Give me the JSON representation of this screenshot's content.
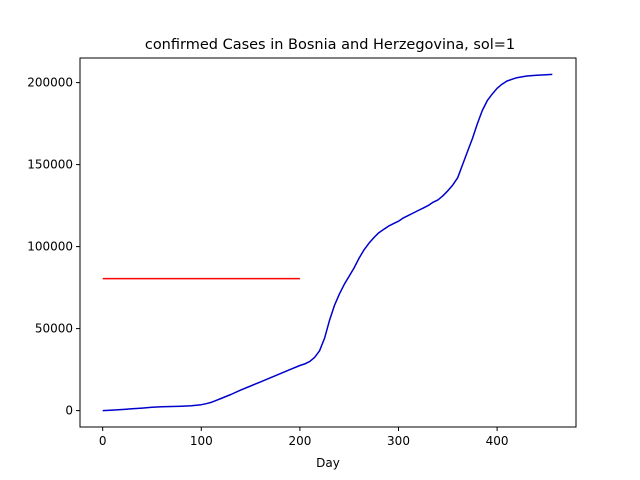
{
  "chart_data": {
    "type": "line",
    "title": "confirmed Cases in Bosnia and Herzegovina, sol=1",
    "xlabel": "Day",
    "ylabel": "",
    "xlim": [
      -23,
      480
    ],
    "ylim": [
      -10000,
      215000
    ],
    "xticks": [
      0,
      100,
      200,
      300,
      400
    ],
    "yticks": [
      0,
      50000,
      100000,
      150000,
      200000
    ],
    "grid": false,
    "series": [
      {
        "color": "#ff0000",
        "x": [
          0,
          200
        ],
        "y": [
          80500,
          80500
        ]
      },
      {
        "color": "#0000cc",
        "x": [
          0,
          10,
          20,
          30,
          40,
          50,
          60,
          70,
          80,
          90,
          100,
          105,
          110,
          115,
          120,
          130,
          140,
          150,
          160,
          170,
          180,
          190,
          200,
          205,
          210,
          215,
          220,
          225,
          230,
          235,
          240,
          245,
          250,
          255,
          260,
          265,
          270,
          275,
          280,
          285,
          290,
          295,
          300,
          305,
          310,
          315,
          320,
          325,
          330,
          335,
          340,
          345,
          350,
          355,
          360,
          365,
          370,
          375,
          380,
          385,
          390,
          395,
          400,
          405,
          410,
          415,
          420,
          430,
          440,
          450,
          456
        ],
        "y": [
          0,
          300,
          700,
          1100,
          1500,
          2000,
          2300,
          2500,
          2700,
          3000,
          3600,
          4200,
          5000,
          6200,
          7400,
          9800,
          12500,
          15000,
          17500,
          20000,
          22500,
          25000,
          27500,
          28500,
          30000,
          32500,
          36500,
          44000,
          55000,
          64000,
          71000,
          77000,
          82000,
          87000,
          93000,
          98000,
          102000,
          105500,
          108500,
          110500,
          112500,
          114000,
          115500,
          117500,
          119000,
          120500,
          122000,
          123500,
          125000,
          127000,
          128500,
          131000,
          134000,
          137500,
          142000,
          150000,
          158000,
          166000,
          175000,
          183000,
          189000,
          193000,
          196500,
          199000,
          201000,
          202000,
          203000,
          204000,
          204500,
          204800,
          205000
        ]
      }
    ]
  }
}
